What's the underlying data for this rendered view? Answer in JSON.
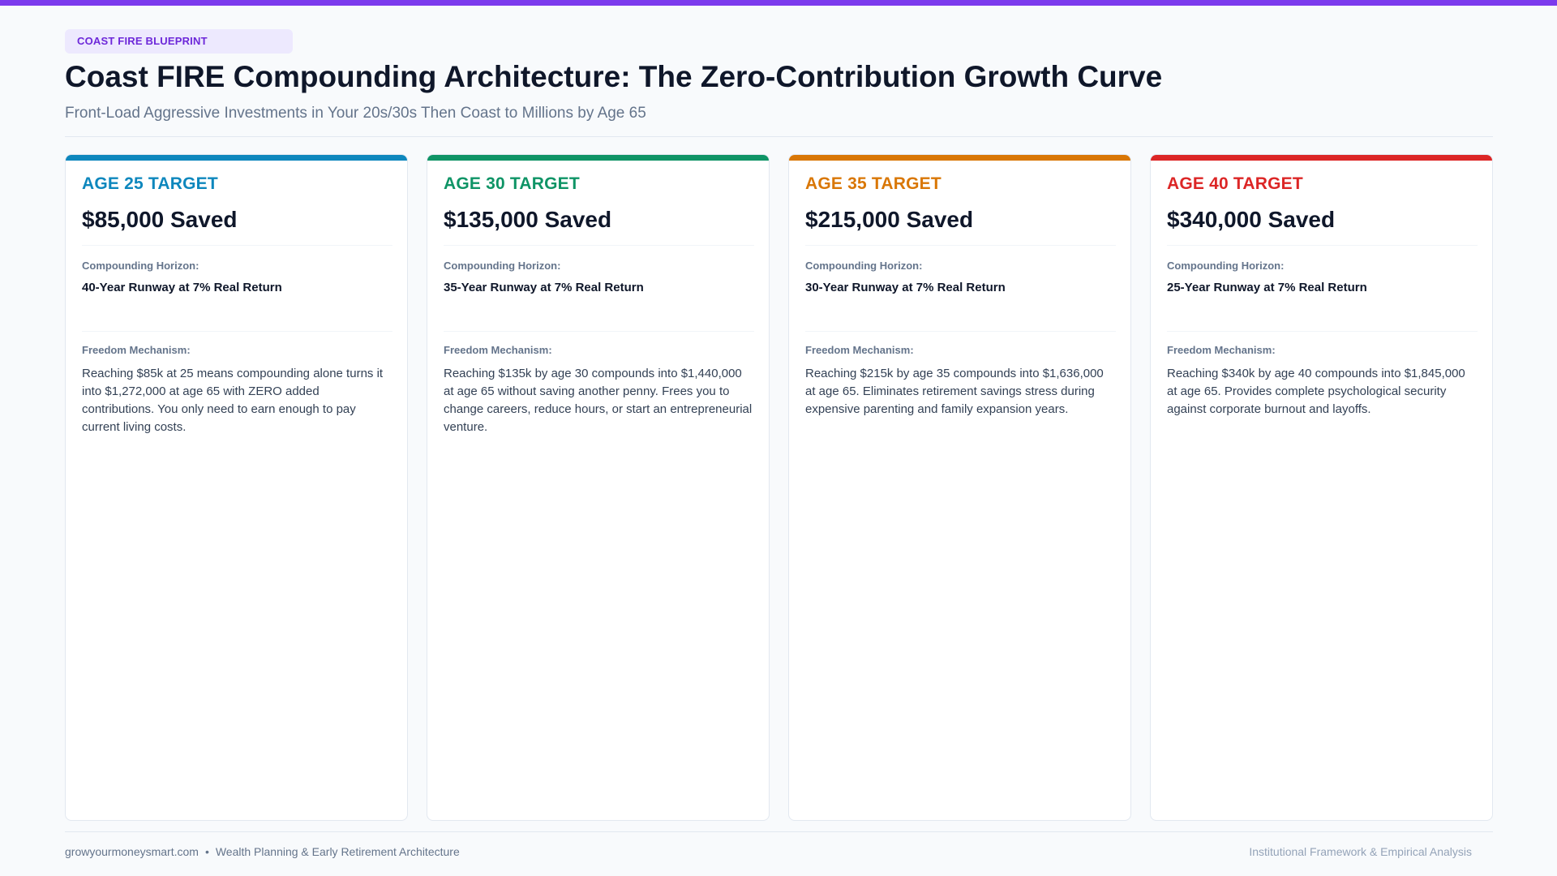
{
  "header": {
    "tag": "COAST FIRE BLUEPRINT",
    "title": "Coast FIRE Compounding Architecture: The Zero-Contribution Growth Curve",
    "subtitle": "Front-Load Aggressive Investments in Your 20s/30s Then Coast to Millions by Age 65"
  },
  "colors": {
    "top_bar": "#7c3aed",
    "card_1": "#0e87bd",
    "card_2": "#0f9466",
    "card_3": "#d97706",
    "card_4": "#dc2626"
  },
  "cards": [
    {
      "label": "AGE 25 TARGET",
      "amount": "$85,000 Saved",
      "horizon_label": "Compounding Horizon:",
      "horizon_value": "40-Year Runway at 7% Real Return",
      "mechanism_label": "Freedom Mechanism:",
      "mechanism_text": "Reaching $85k at 25 means compounding alone turns it into $1,272,000 at age 65 with ZERO added contributions. You only need to earn enough to pay current living costs."
    },
    {
      "label": "AGE 30 TARGET",
      "amount": "$135,000 Saved",
      "horizon_label": "Compounding Horizon:",
      "horizon_value": "35-Year Runway at 7% Real Return",
      "mechanism_label": "Freedom Mechanism:",
      "mechanism_text": "Reaching $135k by age 30 compounds into $1,440,000 at age 65 without saving another penny. Frees you to change careers, reduce hours, or start an entrepreneurial venture."
    },
    {
      "label": "AGE 35 TARGET",
      "amount": "$215,000 Saved",
      "horizon_label": "Compounding Horizon:",
      "horizon_value": "30-Year Runway at 7% Real Return",
      "mechanism_label": "Freedom Mechanism:",
      "mechanism_text": "Reaching $215k by age 35 compounds into $1,636,000 at age 65. Eliminates retirement savings stress during expensive parenting and family expansion years."
    },
    {
      "label": "AGE 40 TARGET",
      "amount": "$340,000 Saved",
      "horizon_label": "Compounding Horizon:",
      "horizon_value": "25-Year Runway at 7% Real Return",
      "mechanism_label": "Freedom Mechanism:",
      "mechanism_text": "Reaching $340k by age 40 compounds into $1,845,000 at age 65. Provides complete psychological security against corporate burnout and layoffs."
    }
  ],
  "footer": {
    "site": "growyourmoneysmart.com",
    "separator": "•",
    "section": "Wealth Planning & Early Retirement Architecture",
    "right": "Institutional Framework & Empirical Analysis"
  }
}
